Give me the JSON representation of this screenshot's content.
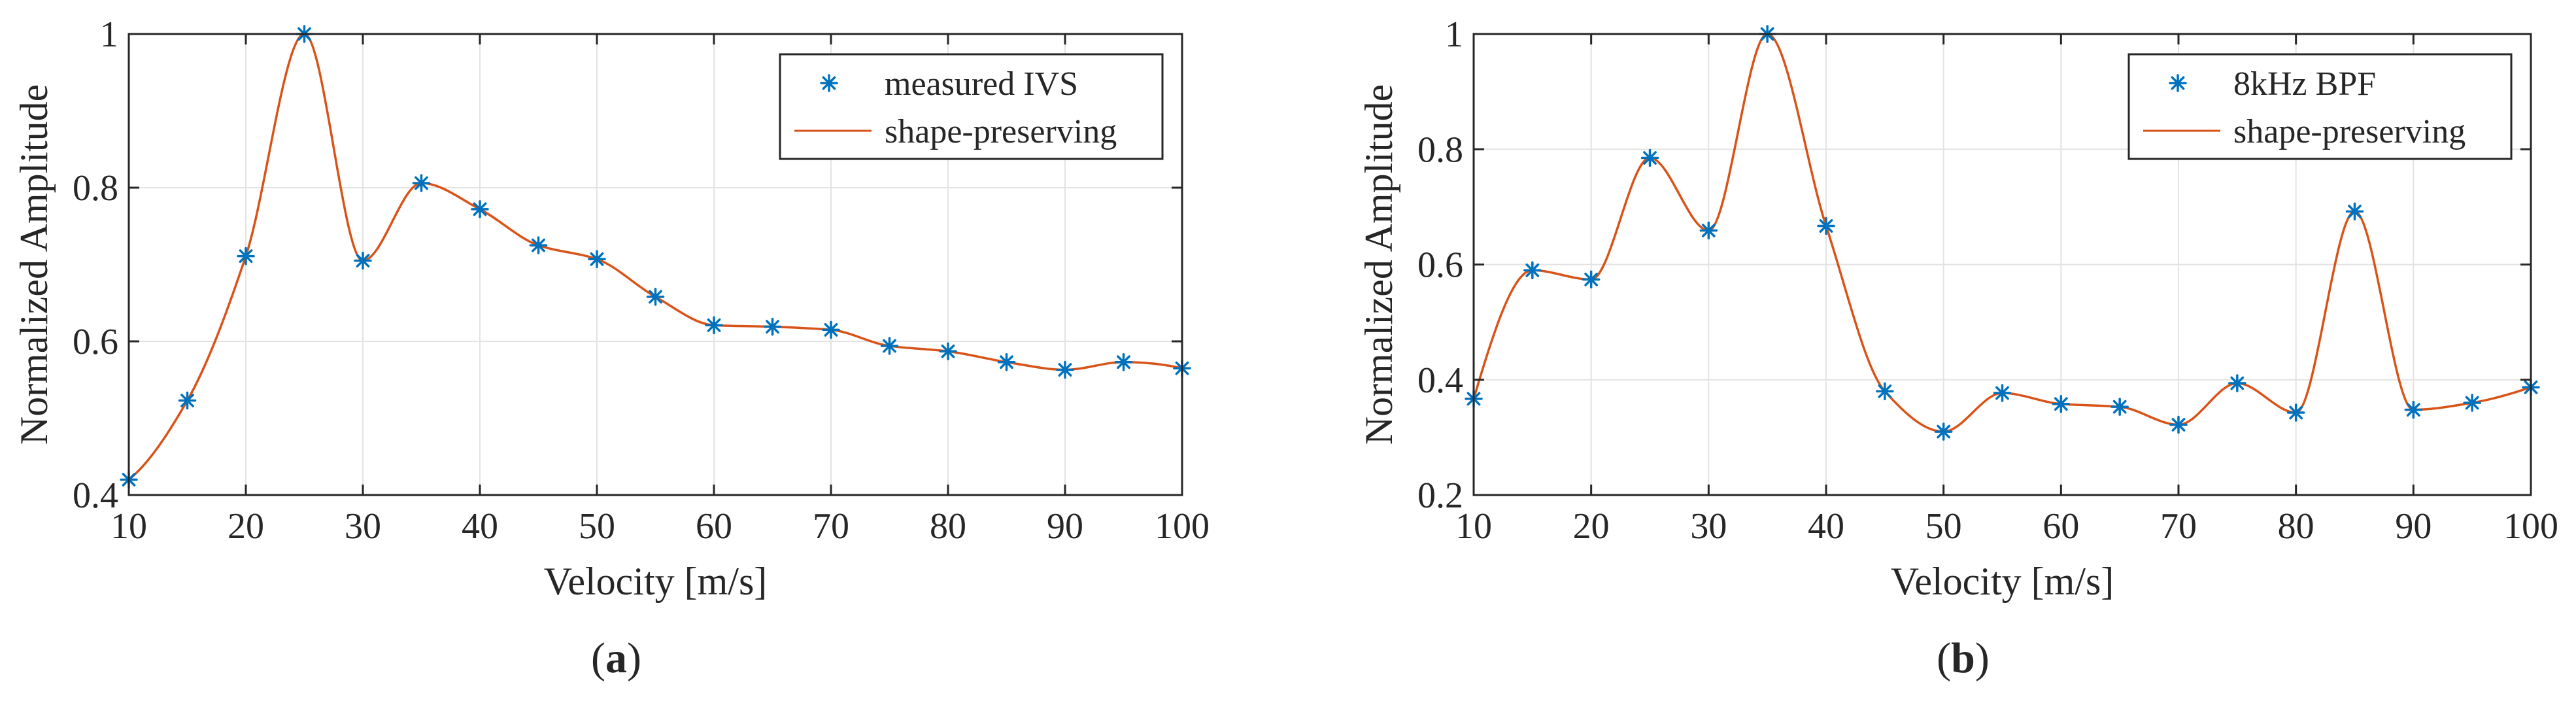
{
  "chart_data": [
    {
      "type": "line",
      "panel_label": "a",
      "xlabel": "Velocity [m/s]",
      "ylabel": "Normalized Amplitude",
      "xlim": [
        10,
        100
      ],
      "ylim": [
        0.4,
        1.0
      ],
      "xticks": [
        10,
        20,
        30,
        40,
        50,
        60,
        70,
        80,
        90,
        100
      ],
      "yticks": [
        0.4,
        0.6,
        0.8,
        1.0
      ],
      "ytick_labels": [
        "0.4",
        "0.6",
        "0.8",
        "1"
      ],
      "grid": true,
      "legend_position": "top-right",
      "x": [
        10,
        15,
        20,
        25,
        30,
        35,
        40,
        45,
        50,
        55,
        60,
        65,
        70,
        75,
        80,
        85,
        90,
        95,
        100
      ],
      "series": [
        {
          "name": "measured IVS",
          "style": "markers",
          "marker": "asterisk",
          "color": "#0072BD",
          "values": [
            0.42,
            0.523,
            0.711,
            1.0,
            0.705,
            0.806,
            0.772,
            0.725,
            0.707,
            0.658,
            0.621,
            0.619,
            0.615,
            0.594,
            0.587,
            0.573,
            0.563,
            0.573,
            0.565
          ]
        },
        {
          "name": "shape-preserving",
          "style": "line",
          "color": "#D95319",
          "values": [
            0.42,
            0.523,
            0.711,
            1.0,
            0.705,
            0.806,
            0.772,
            0.725,
            0.707,
            0.658,
            0.621,
            0.619,
            0.615,
            0.594,
            0.587,
            0.573,
            0.563,
            0.573,
            0.565
          ]
        }
      ]
    },
    {
      "type": "line",
      "panel_label": "b",
      "xlabel": "Velocity [m/s]",
      "ylabel": "Normalized Amplitude",
      "xlim": [
        10,
        100
      ],
      "ylim": [
        0.2,
        1.0
      ],
      "xticks": [
        10,
        20,
        30,
        40,
        50,
        60,
        70,
        80,
        90,
        100
      ],
      "yticks": [
        0.2,
        0.4,
        0.6,
        0.8,
        1.0
      ],
      "ytick_labels": [
        "0.2",
        "0.4",
        "0.6",
        "0.8",
        "1"
      ],
      "grid": true,
      "legend_position": "top-right",
      "x": [
        10,
        15,
        20,
        25,
        30,
        35,
        40,
        45,
        50,
        55,
        60,
        65,
        70,
        75,
        80,
        85,
        90,
        95,
        100
      ],
      "series": [
        {
          "name": "8kHz BPF",
          "style": "markers",
          "marker": "asterisk",
          "color": "#0072BD",
          "values": [
            0.367,
            0.59,
            0.574,
            0.785,
            0.659,
            1.0,
            0.667,
            0.38,
            0.31,
            0.377,
            0.358,
            0.353,
            0.322,
            0.394,
            0.343,
            0.692,
            0.348,
            0.36,
            0.387
          ]
        },
        {
          "name": "shape-preserving",
          "style": "line",
          "color": "#D95319",
          "values": [
            0.367,
            0.59,
            0.574,
            0.785,
            0.659,
            1.0,
            0.667,
            0.38,
            0.31,
            0.377,
            0.358,
            0.353,
            0.322,
            0.394,
            0.343,
            0.692,
            0.348,
            0.36,
            0.387
          ]
        }
      ]
    }
  ]
}
